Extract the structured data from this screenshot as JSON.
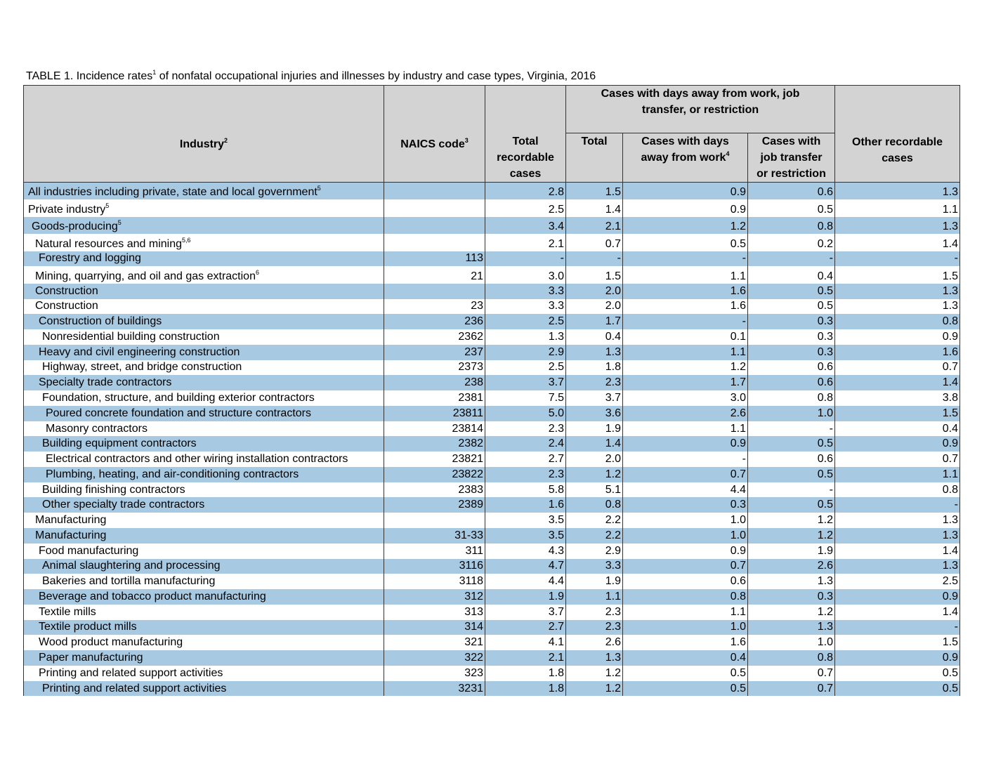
{
  "title": {
    "before": "TABLE 1. Incidence rates",
    "sup": "1",
    "after": " of nonfatal occupational injuries and illnesses by industry and case types, Virginia, 2016"
  },
  "header": {
    "industry": {
      "text": "Industry",
      "sup": "2"
    },
    "naics": {
      "text": "NAICS code",
      "sup": "3"
    },
    "total_recordable": {
      "text": "Total recordable cases"
    },
    "group": {
      "text": "Cases with days away from work, job transfer, or restriction"
    },
    "total": {
      "text": "Total"
    },
    "days_away": {
      "text": "Cases with days away from work",
      "sup": "4"
    },
    "job_transfer": {
      "text": "Cases with job transfer or restriction"
    },
    "other": {
      "text": "Other recordable cases"
    }
  },
  "rows": [
    {
      "industry": "All industries including private, state and local government",
      "sup": "5",
      "cells": [
        "2.8",
        "1.5",
        "0.9",
        "0.6",
        "1.3"
      ]
    },
    {
      "industry": "Private industry",
      "sup": "5",
      "cells": [
        "2.5",
        "1.4",
        "0.9",
        "0.5",
        "1.1"
      ]
    },
    {
      "industry": "Goods-producing",
      "sup": "5",
      "cells": [
        "3.4",
        "2.1",
        "1.2",
        "0.8",
        "1.3"
      ]
    },
    {
      "industry": "Natural resources and mining",
      "sup": "5,6",
      "cells": [
        "2.1",
        "0.7",
        "0.5",
        "0.2",
        "1.4"
      ]
    },
    {
      "industry": "Forestry and logging",
      "naics": "113",
      "cells": [
        "-",
        "-",
        "-",
        "-",
        "-"
      ]
    },
    {
      "industry": "Mining, quarrying, and oil and gas extraction",
      "sup": "6",
      "naics": "21",
      "cells": [
        "3.0",
        "1.5",
        "1.1",
        "0.4",
        "1.5"
      ]
    },
    {
      "industry": "Construction",
      "cells": [
        "3.3",
        "2.0",
        "1.6",
        "0.5",
        "1.3"
      ]
    },
    {
      "industry": "Construction",
      "naics": "23",
      "cells": [
        "3.3",
        "2.0",
        "1.6",
        "0.5",
        "1.3"
      ]
    },
    {
      "industry": "Construction of buildings",
      "naics": "236",
      "cells": [
        "2.5",
        "1.7",
        "-",
        "0.3",
        "0.8"
      ]
    },
    {
      "industry": "Nonresidential building construction",
      "naics": "2362",
      "cells": [
        "1.3",
        "0.4",
        "0.1",
        "0.3",
        "0.9"
      ]
    },
    {
      "industry": "Heavy and civil engineering construction",
      "naics": "237",
      "cells": [
        "2.9",
        "1.3",
        "1.1",
        "0.3",
        "1.6"
      ]
    },
    {
      "industry": "Highway, street, and bridge construction",
      "naics": "2373",
      "cells": [
        "2.5",
        "1.8",
        "1.2",
        "0.6",
        "0.7"
      ]
    },
    {
      "industry": "Specialty trade contractors",
      "naics": "238",
      "cells": [
        "3.7",
        "2.3",
        "1.7",
        "0.6",
        "1.4"
      ]
    },
    {
      "industry": "Foundation, structure, and building exterior contractors",
      "naics": "2381",
      "cells": [
        "7.5",
        "3.7",
        "3.0",
        "0.8",
        "3.8"
      ]
    },
    {
      "industry": "Poured concrete foundation and structure contractors",
      "naics": "23811",
      "cells": [
        "5.0",
        "3.6",
        "2.6",
        "1.0",
        "1.5"
      ]
    },
    {
      "industry": "Masonry contractors",
      "naics": "23814",
      "cells": [
        "2.3",
        "1.9",
        "1.1",
        "-",
        "0.4"
      ]
    },
    {
      "industry": "Building equipment contractors",
      "naics": "2382",
      "cells": [
        "2.4",
        "1.4",
        "0.9",
        "0.5",
        "0.9"
      ]
    },
    {
      "industry": "Electrical contractors and other wiring installation contractors",
      "naics": "23821",
      "cells": [
        "2.7",
        "2.0",
        "-",
        "0.6",
        "0.7"
      ]
    },
    {
      "industry": "Plumbing, heating, and air-conditioning contractors",
      "naics": "23822",
      "cells": [
        "2.3",
        "1.2",
        "0.7",
        "0.5",
        "1.1"
      ]
    },
    {
      "industry": "Building finishing contractors",
      "naics": "2383",
      "cells": [
        "5.8",
        "5.1",
        "4.4",
        "-",
        "0.8"
      ]
    },
    {
      "industry": "Other specialty trade contractors",
      "naics": "2389",
      "cells": [
        "1.6",
        "0.8",
        "0.3",
        "0.5",
        "-"
      ]
    },
    {
      "industry": "Manufacturing",
      "cells": [
        "3.5",
        "2.2",
        "1.0",
        "1.2",
        "1.3"
      ]
    },
    {
      "industry": "Manufacturing",
      "naics": "31-33",
      "cells": [
        "3.5",
        "2.2",
        "1.0",
        "1.2",
        "1.3"
      ]
    },
    {
      "industry": "Food manufacturing",
      "naics": "311",
      "cells": [
        "4.3",
        "2.9",
        "0.9",
        "1.9",
        "1.4"
      ]
    },
    {
      "industry": "Animal slaughtering and processing",
      "naics": "3116",
      "cells": [
        "4.7",
        "3.3",
        "0.7",
        "2.6",
        "1.3"
      ]
    },
    {
      "industry": "Bakeries and tortilla manufacturing",
      "naics": "3118",
      "cells": [
        "4.4",
        "1.9",
        "0.6",
        "1.3",
        "2.5"
      ]
    },
    {
      "industry": "Beverage and tobacco product manufacturing",
      "naics": "312",
      "cells": [
        "1.9",
        "1.1",
        "0.8",
        "0.3",
        "0.9"
      ]
    },
    {
      "industry": "Textile mills",
      "naics": "313",
      "cells": [
        "3.7",
        "2.3",
        "1.1",
        "1.2",
        "1.4"
      ]
    },
    {
      "industry": "Textile product mills",
      "naics": "314",
      "cells": [
        "2.7",
        "2.3",
        "1.0",
        "1.3",
        "-"
      ]
    },
    {
      "industry": "Wood product manufacturing",
      "naics": "321",
      "cells": [
        "4.1",
        "2.6",
        "1.6",
        "1.0",
        "1.5"
      ]
    },
    {
      "industry": "Paper manufacturing",
      "naics": "322",
      "cells": [
        "2.1",
        "1.3",
        "0.4",
        "0.8",
        "0.9"
      ]
    },
    {
      "industry": "Printing and related support activities",
      "naics": "323",
      "cells": [
        "1.8",
        "1.2",
        "0.5",
        "0.7",
        "0.5"
      ]
    },
    {
      "industry": "Printing and related support activities",
      "naics": "3231",
      "cells": [
        "1.8",
        "1.2",
        "0.5",
        "0.7",
        "0.5"
      ]
    }
  ]
}
